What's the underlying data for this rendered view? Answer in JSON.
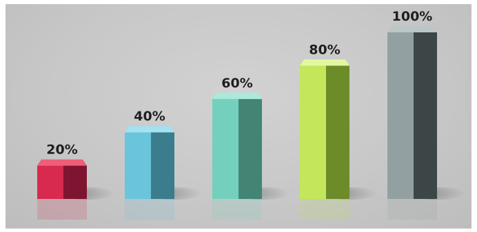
{
  "chart_data": {
    "type": "bar",
    "categories": [
      "20%",
      "40%",
      "60%",
      "80%",
      "100%"
    ],
    "values": [
      20,
      40,
      60,
      80,
      100
    ],
    "data_labels": [
      "20%",
      "40%",
      "60%",
      "80%",
      "100%"
    ],
    "ylim": [
      0,
      100
    ],
    "grid": false,
    "legend": "none",
    "bar_colors": [
      "#d8294e",
      "#6ac4dc",
      "#73d0bd",
      "#c3e65a",
      "#93a0a1"
    ],
    "bar_shade_colors": [
      "#7f1431",
      "#3b7d8d",
      "#428574",
      "#6c8c2a",
      "#3d4647"
    ],
    "bar_top_colors": [
      "#ee5d79",
      "#a2e2f1",
      "#a8eadb",
      "#e3f7a0",
      "#bcc6c6"
    ]
  }
}
